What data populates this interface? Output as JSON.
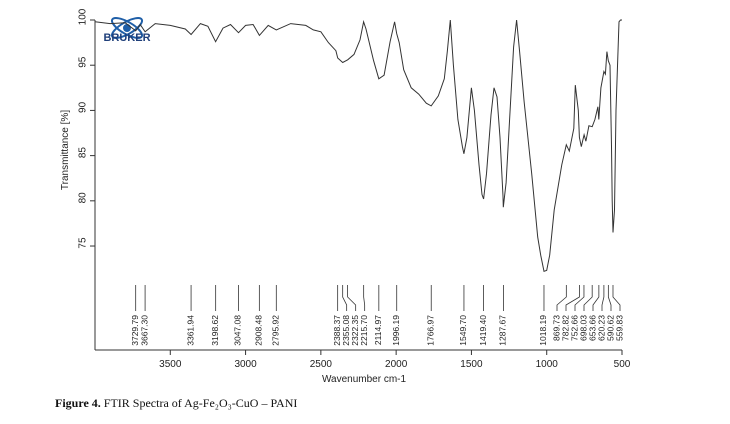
{
  "chart_data": {
    "type": "line",
    "logo": "BRUKER",
    "x_label": "Wavenumber cm-1",
    "y_label": "Transmittance [%]",
    "xlim": [
      4000,
      500
    ],
    "xticks": [
      3500,
      3000,
      2500,
      2000,
      1500,
      1000,
      500
    ],
    "ylim": [
      63.5,
      100
    ],
    "yticks": [
      75,
      80,
      85,
      90,
      95,
      100
    ],
    "series": [
      {
        "color": "#333333",
        "x": [
          4000,
          3900,
          3800,
          3730,
          3700,
          3667,
          3600,
          3500,
          3400,
          3362,
          3300,
          3250,
          3199,
          3150,
          3100,
          3047,
          3000,
          2950,
          2908,
          2850,
          2796,
          2700,
          2600,
          2550,
          2500,
          2450,
          2400,
          2388,
          2355,
          2322,
          2280,
          2240,
          2216,
          2200,
          2150,
          2115,
          2080,
          2040,
          2010,
          1996,
          1980,
          1950,
          1900,
          1850,
          1800,
          1767,
          1720,
          1680,
          1660,
          1640,
          1620,
          1590,
          1560,
          1550,
          1530,
          1500,
          1480,
          1450,
          1430,
          1419,
          1400,
          1370,
          1350,
          1330,
          1310,
          1290,
          1288,
          1270,
          1240,
          1220,
          1200,
          1180,
          1150,
          1100,
          1060,
          1040,
          1018,
          1000,
          980,
          950,
          900,
          870,
          850,
          820,
          810,
          790,
          783,
          770,
          752,
          740,
          720,
          698,
          680,
          660,
          654,
          640,
          620,
          610,
          600,
          591,
          580,
          570,
          565,
          560,
          550,
          540,
          520,
          510,
          500
        ],
        "values": [
          99.8,
          99.6,
          99.7,
          98.8,
          99.5,
          98.7,
          99.6,
          99.4,
          99.0,
          98.4,
          99.6,
          99.3,
          97.6,
          99.1,
          99.5,
          98.6,
          99.4,
          99.5,
          98.3,
          99.4,
          98.9,
          99.6,
          99.4,
          98.9,
          98.7,
          97.5,
          96.6,
          95.8,
          95.3,
          95.6,
          96.2,
          97.8,
          99.8,
          99.0,
          95.5,
          93.5,
          93.9,
          97.6,
          99.8,
          98.5,
          97.5,
          94.5,
          92.5,
          91.8,
          90.8,
          90.5,
          91.6,
          93.5,
          96.5,
          100,
          95,
          89,
          86,
          85.2,
          87,
          92.5,
          90,
          84,
          80.7,
          80.2,
          83,
          89.5,
          92.5,
          91.5,
          87,
          80.5,
          79.3,
          82,
          91,
          97,
          100,
          96.5,
          91,
          83,
          76,
          74,
          72.2,
          72.3,
          74,
          79,
          84,
          86.2,
          85.5,
          88,
          92.8,
          90,
          87,
          86,
          87.3,
          86.6,
          88.3,
          88.2,
          89,
          90.4,
          89,
          92.5,
          94.3,
          94.0,
          96.5,
          95.5,
          95.0,
          86,
          80,
          76.5,
          79,
          90,
          99.8,
          100,
          100
        ]
      }
    ],
    "peaks": [
      {
        "value": 3729.79,
        "label": "3729.79"
      },
      {
        "value": 3667.3,
        "label": "3667.30"
      },
      {
        "value": 3361.94,
        "label": "3361.94"
      },
      {
        "value": 3198.62,
        "label": "3198.62"
      },
      {
        "value": 3047.08,
        "label": "3047.08"
      },
      {
        "value": 2908.48,
        "label": "2908.48"
      },
      {
        "value": 2795.92,
        "label": "2795.92"
      },
      {
        "value": 2388.37,
        "label": "2388.37"
      },
      {
        "value": 2355.08,
        "label": "2355.08"
      },
      {
        "value": 2322.35,
        "label": "2322.35"
      },
      {
        "value": 2215.7,
        "label": "2215.70"
      },
      {
        "value": 2114.97,
        "label": "2114.97"
      },
      {
        "value": 1996.19,
        "label": "1996.19"
      },
      {
        "value": 1766.97,
        "label": "1766.97"
      },
      {
        "value": 1549.7,
        "label": "1549.70"
      },
      {
        "value": 1419.4,
        "label": "1419.40"
      },
      {
        "value": 1287.67,
        "label": "1287.67"
      },
      {
        "value": 1018.19,
        "label": "1018.19"
      },
      {
        "value": 869.73,
        "label": "869.73"
      },
      {
        "value": 782.82,
        "label": "782.82"
      },
      {
        "value": 752.66,
        "label": "752.66"
      },
      {
        "value": 698.03,
        "label": "698.03"
      },
      {
        "value": 653.66,
        "label": "653.66"
      },
      {
        "value": 620.23,
        "label": "620.23"
      },
      {
        "value": 590.62,
        "label": "590.62"
      },
      {
        "value": 559.83,
        "label": "559.83"
      }
    ],
    "caption_label": "Figure 4.",
    "caption": "FTIR Spectra of Ag-Fe₂O₃-CuO – PANI"
  }
}
